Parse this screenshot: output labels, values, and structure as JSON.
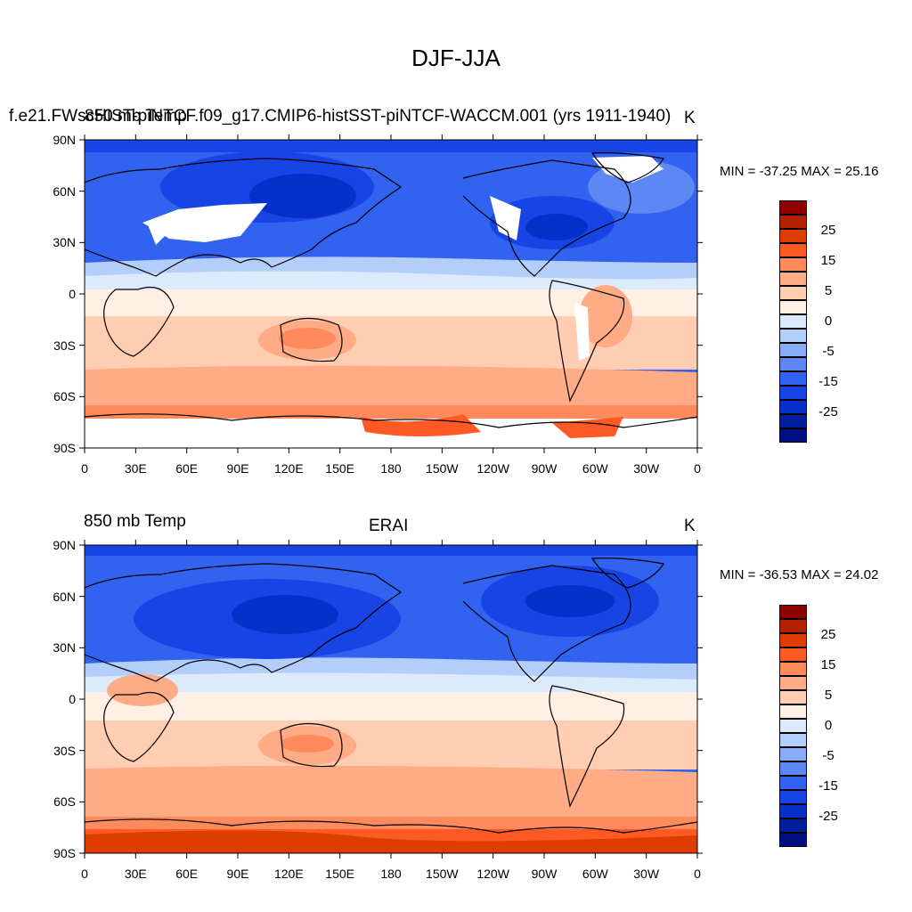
{
  "figure": {
    "title": "DJF-JJA"
  },
  "panels": [
    {
      "left_title": "850 mb Temp",
      "center_title": "f.e21.FWscHIST-piNTCF.f09_g17.CMIP6-histSST-piNTCF-WACCM.001 (yrs 1911-1940)",
      "right_title": "K",
      "stats": "MIN = -37.25 MAX =  25.16",
      "has_missing_land": true
    },
    {
      "left_title": "850 mb Temp",
      "center_title": "ERAI",
      "right_title": "K",
      "stats": "MIN = -36.53 MAX =  24.02",
      "has_missing_land": false
    }
  ],
  "axes": {
    "lat_labels": [
      "90N",
      "60N",
      "30N",
      "0",
      "30S",
      "60S",
      "90S"
    ],
    "lon_labels": [
      "0",
      "30E",
      "60E",
      "90E",
      "120E",
      "150E",
      "180",
      "150W",
      "120W",
      "90W",
      "60W",
      "30W",
      "0"
    ]
  },
  "colorbar": {
    "labels": [
      "25",
      "15",
      "5",
      "0",
      "-5",
      "-15",
      "-25"
    ],
    "levels": [
      -35,
      -30,
      -25,
      -20,
      -15,
      -10,
      -5,
      -2,
      0,
      2,
      5,
      10,
      15,
      20,
      25,
      30,
      35
    ],
    "colors_top_to_bottom": [
      "#8f0000",
      "#b52100",
      "#e03c00",
      "#ff5a24",
      "#ff8a5c",
      "#ffab86",
      "#ffcdb2",
      "#fff0e3",
      "#dcebfc",
      "#b3cefa",
      "#89acf6",
      "#5d87f2",
      "#3162f0",
      "#1844e6",
      "#0630c9",
      "#001f9d",
      "#001080"
    ]
  }
}
